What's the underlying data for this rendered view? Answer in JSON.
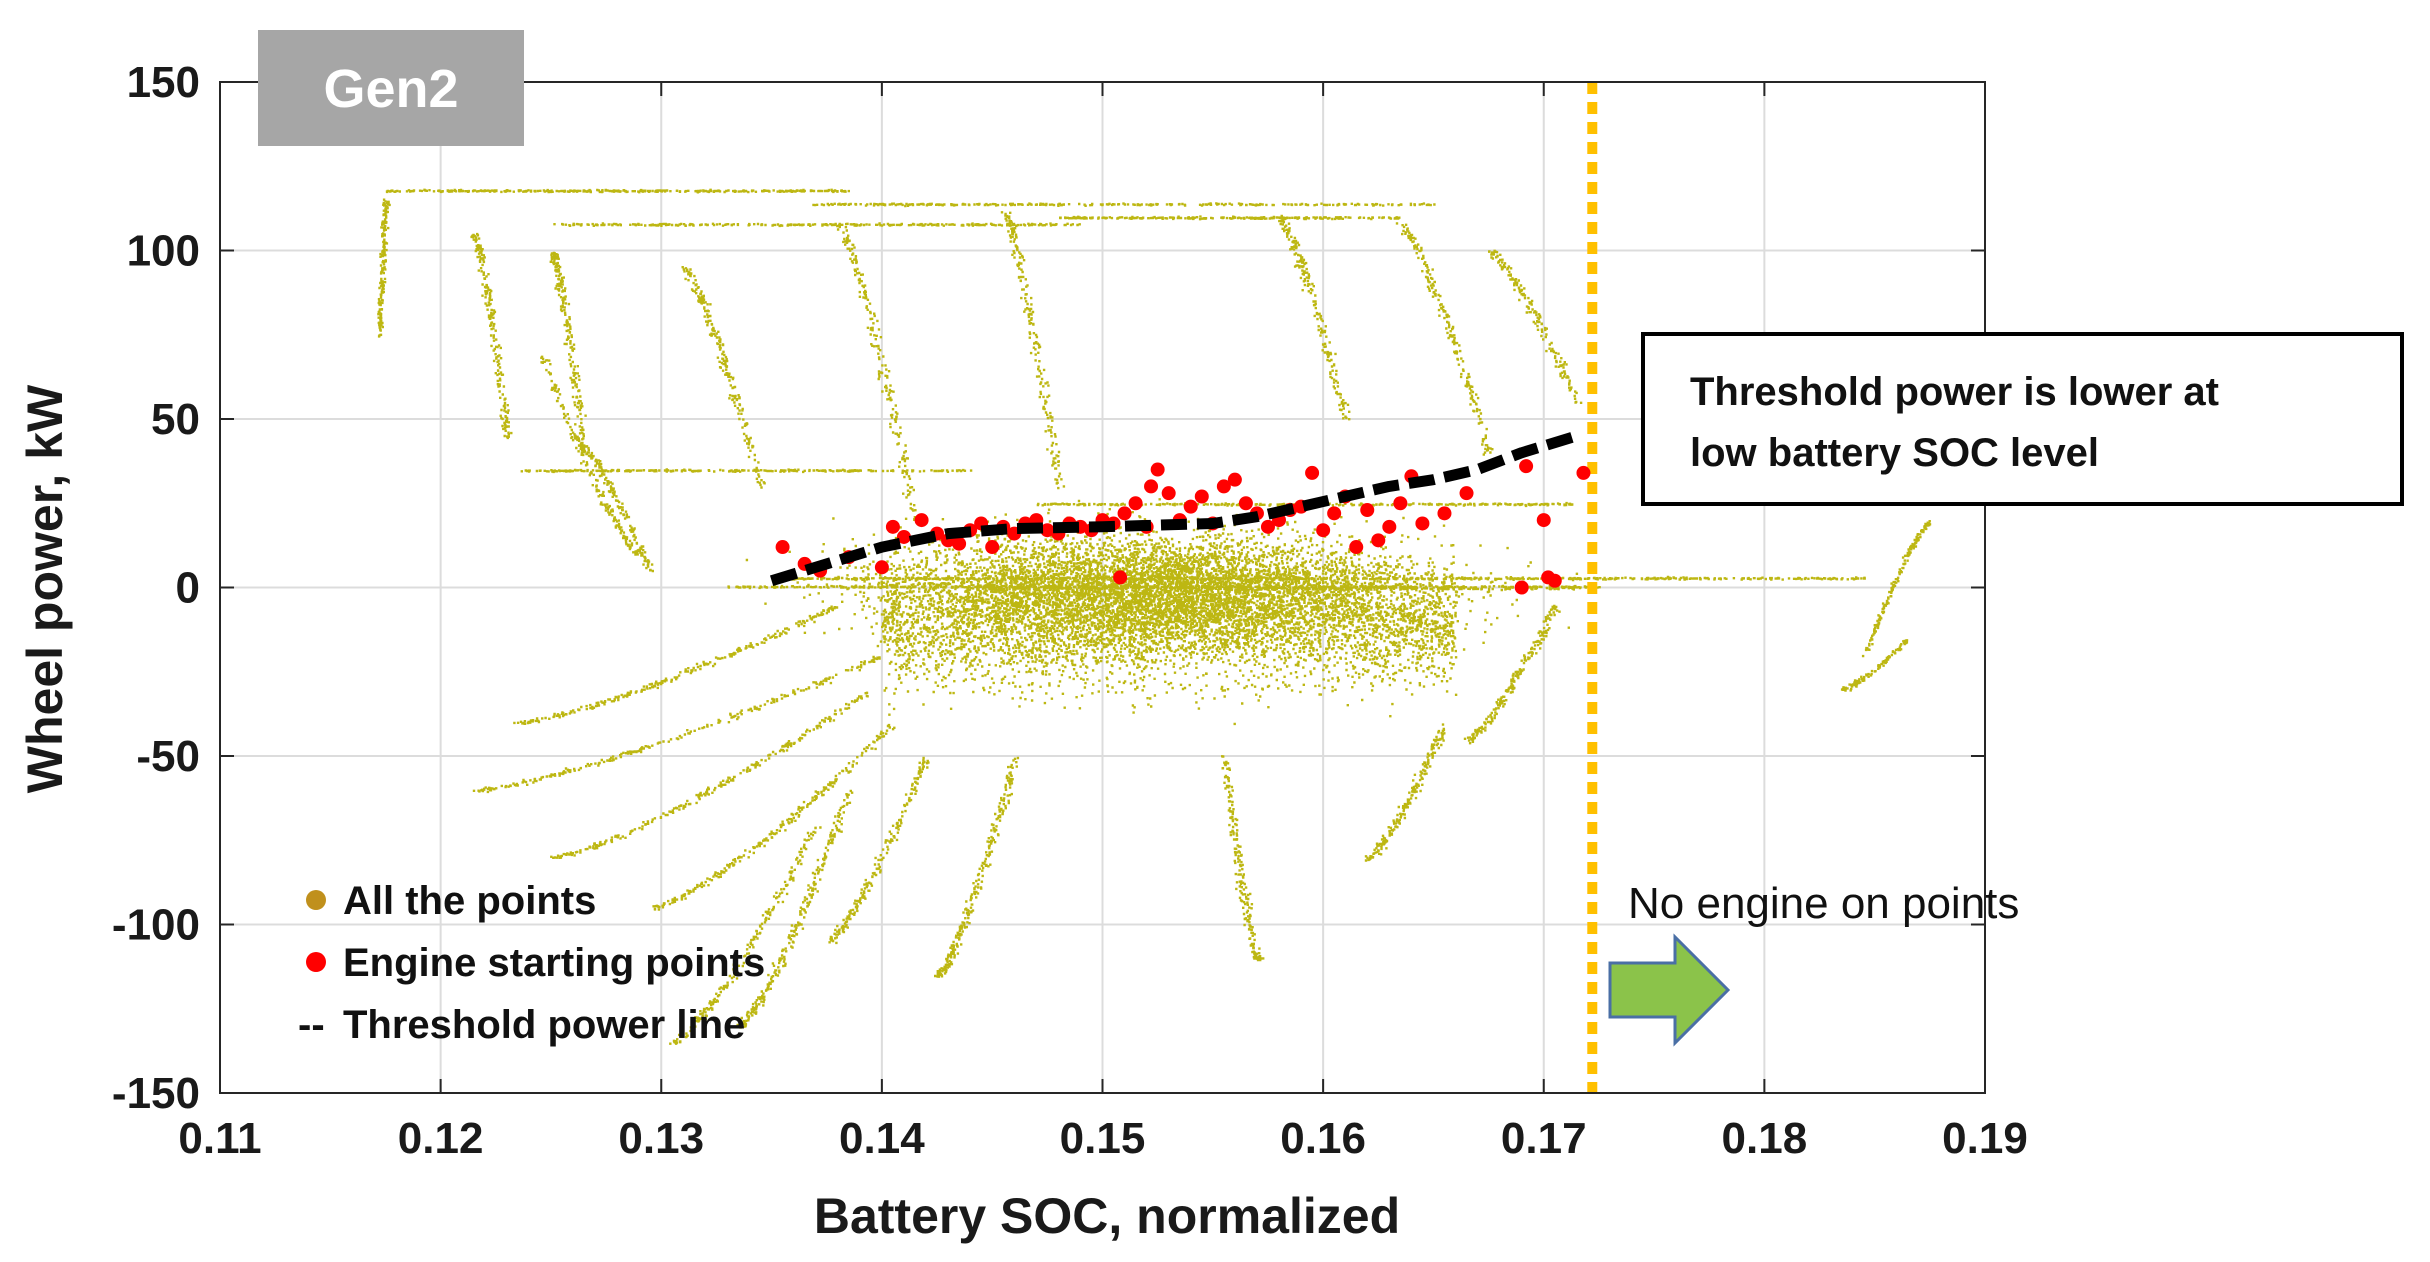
{
  "chart_data": {
    "type": "scatter",
    "xlabel": "Battery SOC, normalized",
    "ylabel": "Wheel power, kW",
    "xlim": [
      0.11,
      0.19
    ],
    "ylim": [
      -150,
      150
    ],
    "x_ticks": [
      0.11,
      0.12,
      0.13,
      0.14,
      0.15,
      0.16,
      0.17,
      0.18,
      0.19
    ],
    "x_tick_labels": [
      "0.11",
      "0.12",
      "0.13",
      "0.14",
      "0.15",
      "0.16",
      "0.17",
      "0.18",
      "0.19"
    ],
    "y_ticks": [
      150,
      100,
      50,
      0,
      -50,
      -100,
      -150
    ],
    "y_tick_labels": [
      "150",
      "100",
      "50",
      "0",
      "-50",
      "-100",
      "-150"
    ],
    "grid": true,
    "tag": "Gen2",
    "series": [
      {
        "name": "All the points",
        "kind": "scatter-dense",
        "color": "#bdb712",
        "core_region": {
          "x": [
            0.14,
            0.164
          ],
          "y": [
            -50,
            40
          ]
        }
      },
      {
        "name": "Engine starting points",
        "kind": "scatter",
        "color": "#ff0000",
        "points": [
          [
            0.1355,
            12
          ],
          [
            0.1365,
            7
          ],
          [
            0.1372,
            5
          ],
          [
            0.1385,
            9
          ],
          [
            0.14,
            6
          ],
          [
            0.1405,
            18
          ],
          [
            0.141,
            15
          ],
          [
            0.1418,
            20
          ],
          [
            0.1425,
            16
          ],
          [
            0.143,
            14
          ],
          [
            0.1435,
            13
          ],
          [
            0.144,
            17
          ],
          [
            0.1445,
            19
          ],
          [
            0.145,
            12
          ],
          [
            0.1455,
            18
          ],
          [
            0.146,
            16
          ],
          [
            0.1465,
            19
          ],
          [
            0.147,
            20
          ],
          [
            0.1475,
            17
          ],
          [
            0.148,
            16
          ],
          [
            0.1485,
            19
          ],
          [
            0.149,
            18
          ],
          [
            0.1495,
            17
          ],
          [
            0.15,
            20
          ],
          [
            0.1505,
            19
          ],
          [
            0.1508,
            3
          ],
          [
            0.151,
            22
          ],
          [
            0.1515,
            25
          ],
          [
            0.152,
            18
          ],
          [
            0.1522,
            30
          ],
          [
            0.1525,
            35
          ],
          [
            0.153,
            28
          ],
          [
            0.1535,
            20
          ],
          [
            0.154,
            24
          ],
          [
            0.1545,
            27
          ],
          [
            0.155,
            19
          ],
          [
            0.1555,
            30
          ],
          [
            0.156,
            32
          ],
          [
            0.1565,
            25
          ],
          [
            0.157,
            22
          ],
          [
            0.1575,
            18
          ],
          [
            0.158,
            20
          ],
          [
            0.1585,
            23
          ],
          [
            0.159,
            24
          ],
          [
            0.1595,
            34
          ],
          [
            0.16,
            17
          ],
          [
            0.1605,
            22
          ],
          [
            0.161,
            27
          ],
          [
            0.1615,
            12
          ],
          [
            0.162,
            23
          ],
          [
            0.1625,
            14
          ],
          [
            0.163,
            18
          ],
          [
            0.1635,
            25
          ],
          [
            0.164,
            33
          ],
          [
            0.1645,
            19
          ],
          [
            0.1655,
            22
          ],
          [
            0.1665,
            28
          ],
          [
            0.169,
            0
          ],
          [
            0.1692,
            36
          ],
          [
            0.17,
            20
          ],
          [
            0.1702,
            3
          ],
          [
            0.1705,
            2
          ],
          [
            0.1718,
            34
          ]
        ]
      },
      {
        "name": "Threshold power line",
        "kind": "dashed-line",
        "color": "#000000",
        "points": [
          [
            0.135,
            2
          ],
          [
            0.137,
            6
          ],
          [
            0.14,
            12
          ],
          [
            0.143,
            16
          ],
          [
            0.146,
            17.5
          ],
          [
            0.15,
            18
          ],
          [
            0.155,
            19
          ],
          [
            0.157,
            21
          ],
          [
            0.159,
            24
          ],
          [
            0.161,
            27
          ],
          [
            0.163,
            30
          ],
          [
            0.165,
            32
          ],
          [
            0.167,
            35
          ],
          [
            0.169,
            40
          ],
          [
            0.1715,
            45
          ]
        ]
      }
    ],
    "threshold_vline": {
      "x": 0.1722,
      "color": "#ffc000"
    },
    "legend": {
      "placement": "bottom-left",
      "items": [
        {
          "label": "All the points",
          "color": "#c0901c",
          "style": "dot"
        },
        {
          "label": "Engine starting points",
          "color": "#ff0000",
          "style": "dot"
        },
        {
          "label": "Threshold power line",
          "color": "#000000",
          "style": "dash",
          "prefix": "--"
        }
      ]
    },
    "annotation_box": {
      "lines": [
        "Threshold power is lower at",
        "low battery SOC level"
      ]
    },
    "no_engine_label": "No engine on points",
    "arrow_color": "#8bc34a"
  }
}
